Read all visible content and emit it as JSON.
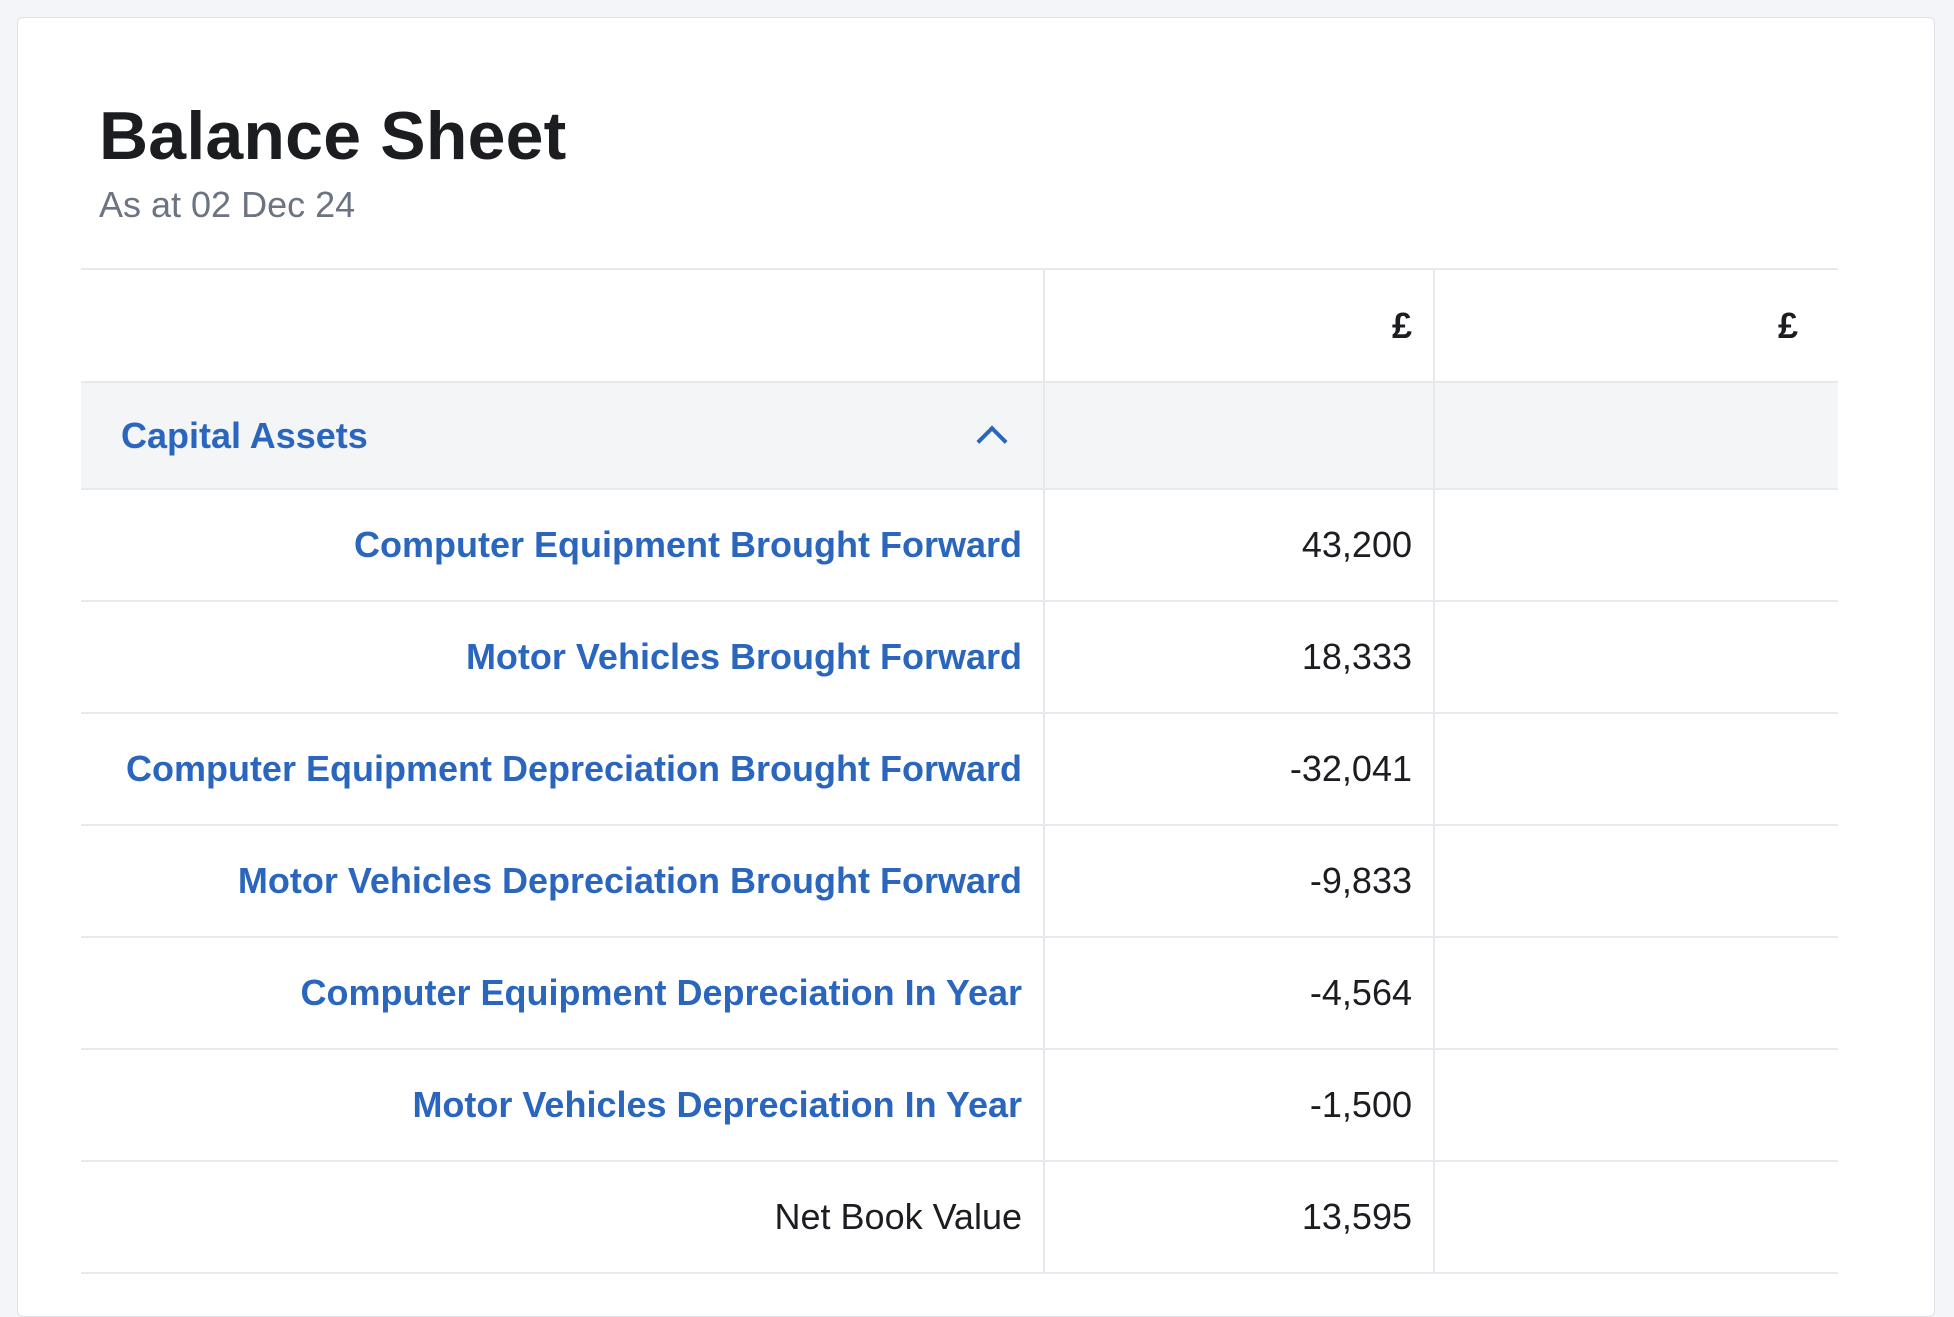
{
  "report": {
    "title": "Balance Sheet",
    "subtitle": "As at 02 Dec 24"
  },
  "table": {
    "headers": [
      "",
      "£",
      "£"
    ],
    "section": {
      "label": "Capital Assets",
      "toggle_icon": "chevron-up-icon"
    },
    "rows": [
      {
        "label": "Computer Equipment Brought Forward",
        "amount": "43,200",
        "total": ""
      },
      {
        "label": "Motor Vehicles Brought Forward",
        "amount": "18,333",
        "total": ""
      },
      {
        "label": "Computer Equipment Depreciation Brought Forward",
        "amount": "-32,041",
        "total": ""
      },
      {
        "label": "Motor Vehicles Depreciation Brought Forward",
        "amount": "-9,833",
        "total": ""
      },
      {
        "label": "Computer Equipment Depreciation In Year",
        "amount": "-4,564",
        "total": ""
      },
      {
        "label": "Motor Vehicles Depreciation In Year",
        "amount": "-1,500",
        "total": ""
      },
      {
        "label": "Net Book Value",
        "amount": "13,595",
        "total": ""
      }
    ]
  },
  "colors": {
    "link": "#2b66be",
    "text": "#1b1d21",
    "muted": "#6b7480",
    "section_bg": "#f4f5f7",
    "border": "#e6e9ee"
  }
}
